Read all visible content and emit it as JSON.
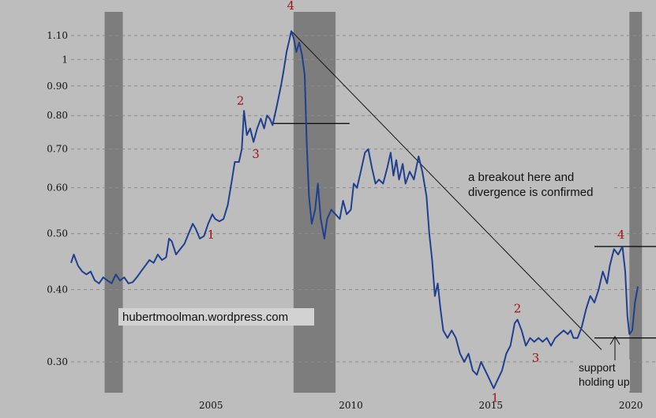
{
  "chart_data": {
    "type": "line",
    "title": "",
    "xlabel": "",
    "ylabel": "",
    "y_scale": "log",
    "ylim": [
      0.27,
      1.16
    ],
    "xlim": [
      2000.0,
      2020.9
    ],
    "grid": true,
    "x_ticks": [
      {
        "value": 2005,
        "label": "2005"
      },
      {
        "value": 2010,
        "label": "2010"
      },
      {
        "value": 2015,
        "label": "2015"
      },
      {
        "value": 2020,
        "label": "2020"
      }
    ],
    "y_ticks": [
      {
        "value": 0.3,
        "label": "0.30"
      },
      {
        "value": 0.4,
        "label": "0.40"
      },
      {
        "value": 0.5,
        "label": "0.50"
      },
      {
        "value": 0.6,
        "label": "0.60"
      },
      {
        "value": 0.7,
        "label": "0.70"
      },
      {
        "value": 0.8,
        "label": "0.80"
      },
      {
        "value": 0.9,
        "label": "0.90"
      },
      {
        "value": 1.0,
        "label": "1"
      },
      {
        "value": 1.1,
        "label": "1.10"
      }
    ],
    "recession_bands": [
      {
        "start": 2001.2,
        "end": 2001.85
      },
      {
        "start": 2007.95,
        "end": 2009.45
      },
      {
        "start": 2019.95,
        "end": 2020.4
      }
    ],
    "series": [
      {
        "color": "#1f3f8f",
        "points": [
          [
            2000.0,
            0.445
          ],
          [
            2000.1,
            0.46
          ],
          [
            2000.25,
            0.44
          ],
          [
            2000.4,
            0.43
          ],
          [
            2000.55,
            0.425
          ],
          [
            2000.7,
            0.43
          ],
          [
            2000.85,
            0.415
          ],
          [
            2001.0,
            0.41
          ],
          [
            2001.15,
            0.42
          ],
          [
            2001.3,
            0.415
          ],
          [
            2001.45,
            0.41
          ],
          [
            2001.6,
            0.425
          ],
          [
            2001.75,
            0.415
          ],
          [
            2001.9,
            0.42
          ],
          [
            2002.05,
            0.41
          ],
          [
            2002.2,
            0.412
          ],
          [
            2002.35,
            0.42
          ],
          [
            2002.5,
            0.43
          ],
          [
            2002.65,
            0.44
          ],
          [
            2002.8,
            0.45
          ],
          [
            2002.95,
            0.445
          ],
          [
            2003.1,
            0.46
          ],
          [
            2003.25,
            0.45
          ],
          [
            2003.4,
            0.455
          ],
          [
            2003.5,
            0.49
          ],
          [
            2003.6,
            0.485
          ],
          [
            2003.75,
            0.46
          ],
          [
            2003.9,
            0.47
          ],
          [
            2004.05,
            0.48
          ],
          [
            2004.2,
            0.5
          ],
          [
            2004.35,
            0.52
          ],
          [
            2004.45,
            0.51
          ],
          [
            2004.6,
            0.49
          ],
          [
            2004.75,
            0.495
          ],
          [
            2004.9,
            0.52
          ],
          [
            2005.05,
            0.54
          ],
          [
            2005.15,
            0.53
          ],
          [
            2005.3,
            0.525
          ],
          [
            2005.45,
            0.53
          ],
          [
            2005.6,
            0.56
          ],
          [
            2005.75,
            0.62
          ],
          [
            2005.85,
            0.665
          ],
          [
            2006.0,
            0.665
          ],
          [
            2006.1,
            0.7
          ],
          [
            2006.18,
            0.815
          ],
          [
            2006.28,
            0.74
          ],
          [
            2006.4,
            0.76
          ],
          [
            2006.52,
            0.72
          ],
          [
            2006.65,
            0.76
          ],
          [
            2006.78,
            0.79
          ],
          [
            2006.9,
            0.76
          ],
          [
            2007.0,
            0.8
          ],
          [
            2007.1,
            0.79
          ],
          [
            2007.2,
            0.77
          ],
          [
            2007.35,
            0.83
          ],
          [
            2007.5,
            0.9
          ],
          [
            2007.6,
            0.96
          ],
          [
            2007.7,
            1.03
          ],
          [
            2007.8,
            1.08
          ],
          [
            2007.87,
            1.12
          ],
          [
            2007.95,
            1.09
          ],
          [
            2008.05,
            1.03
          ],
          [
            2008.15,
            1.07
          ],
          [
            2008.25,
            1.02
          ],
          [
            2008.35,
            0.94
          ],
          [
            2008.42,
            0.72
          ],
          [
            2008.5,
            0.58
          ],
          [
            2008.6,
            0.52
          ],
          [
            2008.72,
            0.55
          ],
          [
            2008.82,
            0.61
          ],
          [
            2008.92,
            0.53
          ],
          [
            2009.05,
            0.49
          ],
          [
            2009.15,
            0.53
          ],
          [
            2009.3,
            0.55
          ],
          [
            2009.45,
            0.54
          ],
          [
            2009.6,
            0.53
          ],
          [
            2009.72,
            0.57
          ],
          [
            2009.85,
            0.54
          ],
          [
            2010.0,
            0.55
          ],
          [
            2010.1,
            0.61
          ],
          [
            2010.22,
            0.6
          ],
          [
            2010.35,
            0.64
          ],
          [
            2010.5,
            0.69
          ],
          [
            2010.62,
            0.7
          ],
          [
            2010.75,
            0.65
          ],
          [
            2010.88,
            0.61
          ],
          [
            2011.0,
            0.62
          ],
          [
            2011.15,
            0.61
          ],
          [
            2011.3,
            0.65
          ],
          [
            2011.42,
            0.69
          ],
          [
            2011.52,
            0.63
          ],
          [
            2011.62,
            0.67
          ],
          [
            2011.72,
            0.62
          ],
          [
            2011.85,
            0.66
          ],
          [
            2011.95,
            0.61
          ],
          [
            2012.1,
            0.64
          ],
          [
            2012.25,
            0.62
          ],
          [
            2012.42,
            0.68
          ],
          [
            2012.55,
            0.64
          ],
          [
            2012.7,
            0.58
          ],
          [
            2012.8,
            0.5
          ],
          [
            2012.9,
            0.45
          ],
          [
            2013.0,
            0.39
          ],
          [
            2013.1,
            0.41
          ],
          [
            2013.2,
            0.37
          ],
          [
            2013.3,
            0.34
          ],
          [
            2013.45,
            0.33
          ],
          [
            2013.6,
            0.34
          ],
          [
            2013.75,
            0.33
          ],
          [
            2013.9,
            0.31
          ],
          [
            2014.05,
            0.3
          ],
          [
            2014.2,
            0.31
          ],
          [
            2014.35,
            0.29
          ],
          [
            2014.5,
            0.285
          ],
          [
            2014.65,
            0.3
          ],
          [
            2014.8,
            0.29
          ],
          [
            2014.95,
            0.28
          ],
          [
            2015.1,
            0.27
          ],
          [
            2015.25,
            0.28
          ],
          [
            2015.4,
            0.29
          ],
          [
            2015.55,
            0.31
          ],
          [
            2015.7,
            0.32
          ],
          [
            2015.85,
            0.35
          ],
          [
            2015.95,
            0.355
          ],
          [
            2016.1,
            0.34
          ],
          [
            2016.25,
            0.32
          ],
          [
            2016.4,
            0.33
          ],
          [
            2016.55,
            0.325
          ],
          [
            2016.7,
            0.33
          ],
          [
            2016.85,
            0.325
          ],
          [
            2017.0,
            0.33
          ],
          [
            2017.15,
            0.32
          ],
          [
            2017.3,
            0.33
          ],
          [
            2017.45,
            0.335
          ],
          [
            2017.6,
            0.34
          ],
          [
            2017.75,
            0.335
          ],
          [
            2017.85,
            0.34
          ],
          [
            2017.95,
            0.33
          ],
          [
            2018.1,
            0.33
          ],
          [
            2018.25,
            0.345
          ],
          [
            2018.4,
            0.37
          ],
          [
            2018.55,
            0.39
          ],
          [
            2018.7,
            0.38
          ],
          [
            2018.85,
            0.4
          ],
          [
            2019.0,
            0.43
          ],
          [
            2019.15,
            0.41
          ],
          [
            2019.25,
            0.44
          ],
          [
            2019.4,
            0.47
          ],
          [
            2019.55,
            0.46
          ],
          [
            2019.7,
            0.475
          ],
          [
            2019.8,
            0.43
          ],
          [
            2019.88,
            0.36
          ],
          [
            2019.95,
            0.335
          ],
          [
            2020.05,
            0.34
          ],
          [
            2020.15,
            0.38
          ],
          [
            2020.25,
            0.405
          ]
        ]
      }
    ],
    "trendline": {
      "from": [
        2007.87,
        1.12
      ],
      "to": [
        2018.95,
        0.315
      ]
    },
    "levels": [
      {
        "from": 2007.2,
        "to": 2009.95,
        "y": 0.775
      },
      {
        "from": 2018.7,
        "to": 2020.9,
        "y": 0.475
      },
      {
        "from": 2018.7,
        "to": 2020.9,
        "y": 0.33
      }
    ],
    "wave_labels": [
      {
        "text": "1",
        "x": 2005.0,
        "y": 0.49
      },
      {
        "text": "2",
        "x": 2006.05,
        "y": 0.835
      },
      {
        "text": "3",
        "x": 2006.6,
        "y": 0.675
      },
      {
        "text": "4",
        "x": 2007.85,
        "y": 1.22
      },
      {
        "text": "1",
        "x": 2015.15,
        "y": 0.256
      },
      {
        "text": "2",
        "x": 2015.95,
        "y": 0.365
      },
      {
        "text": "3",
        "x": 2016.6,
        "y": 0.3
      },
      {
        "text": "4",
        "x": 2019.65,
        "y": 0.49
      }
    ],
    "wave_label_color": "#a01414",
    "line_color": "#1f3f8f",
    "annotations": {
      "breakout_line1": "a breakout here and",
      "breakout_line2": "divergence is confirmed",
      "support_line1": "support",
      "support_line2": "holding up",
      "watermark": "hubertmoolman.wordpress.com"
    }
  }
}
